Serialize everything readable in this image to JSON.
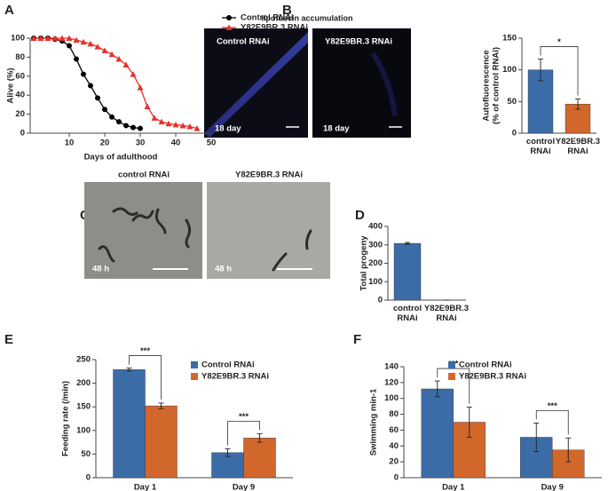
{
  "panels": [
    "A",
    "B",
    "C",
    "D",
    "E",
    "F"
  ],
  "images": {
    "title": "lipofuscin accumulation",
    "b": [
      {
        "label": "Control RNAi",
        "time": "18 day"
      },
      {
        "label": "Y82E9BR.3 RNAi",
        "time": "18 day"
      }
    ],
    "c": [
      {
        "label": "control RNAi",
        "time": "48 h"
      },
      {
        "label": "Y82E9BR.3 RNAi",
        "time": "48 h"
      }
    ]
  },
  "chart_data": [
    {
      "type": "line",
      "ylabel": "Alive (%)",
      "xlabel": "Days of adulthood",
      "xlim": [
        0,
        50
      ],
      "xticks": [
        10,
        20,
        30,
        40,
        50
      ],
      "ylim": [
        0,
        100
      ],
      "yticks": [
        0,
        20,
        40,
        60,
        80,
        100
      ],
      "legend": "upper right",
      "series": [
        {
          "name": "Control RNAi",
          "color": "#000000",
          "marker": "circle",
          "x": [
            0,
            2,
            4,
            6,
            8,
            10,
            12,
            14,
            16,
            18,
            20,
            22,
            24,
            26,
            28,
            30
          ],
          "values": [
            100,
            100,
            100,
            99,
            97,
            92,
            78,
            62,
            50,
            37,
            25,
            17,
            12,
            8,
            6,
            5
          ]
        },
        {
          "name": "Y82E9BR.3 RNAi",
          "color": "#e8302a",
          "marker": "triangle",
          "x": [
            0,
            2,
            4,
            6,
            8,
            10,
            12,
            14,
            16,
            18,
            20,
            22,
            24,
            26,
            28,
            30,
            32,
            34,
            36,
            38,
            40,
            42,
            44,
            46
          ],
          "values": [
            100,
            100,
            100,
            100,
            100,
            100,
            98,
            96,
            94,
            91,
            87,
            83,
            78,
            72,
            62,
            48,
            28,
            16,
            12,
            10,
            9,
            8,
            7,
            5
          ]
        }
      ]
    },
    {
      "type": "bar",
      "ylabel": [
        "Autofluorescence",
        "(% of control RNAi)"
      ],
      "categories": [
        "control RNAi",
        "Y82E9BR.3 RNAi"
      ],
      "values": [
        100,
        46
      ],
      "errors": [
        17,
        8
      ],
      "colors": [
        "#3c6ca8",
        "#d2672c"
      ],
      "ylim": [
        0,
        150
      ],
      "yticks": [
        0,
        50,
        100,
        150
      ],
      "annotations": [
        "*"
      ]
    },
    {
      "type": "bar",
      "ylabel": [
        "Total progeny"
      ],
      "categories": [
        "control RNAi",
        "Y82E9BR.3 RNAi"
      ],
      "values": [
        308,
        0
      ],
      "errors": [
        5,
        0
      ],
      "colors": [
        "#3c6ca8",
        "#d2672c"
      ],
      "ylim": [
        0,
        400
      ],
      "yticks": [
        0,
        100,
        200,
        300,
        400
      ]
    },
    {
      "type": "bar",
      "ylabel": [
        "Feeding rate (/min)"
      ],
      "categories": [
        "Day 1",
        "Day 9"
      ],
      "series": [
        {
          "name": "Control RNAi",
          "color": "#3c6ca8",
          "values": [
            229,
            53
          ],
          "errors": [
            3,
            8
          ]
        },
        {
          "name": "Y82E9BR.3 RNAi",
          "color": "#d2672c",
          "values": [
            152,
            84
          ],
          "errors": [
            6,
            9
          ]
        }
      ],
      "ylim": [
        0,
        250
      ],
      "yticks": [
        0,
        50,
        100,
        150,
        200,
        250
      ],
      "annotations": [
        "***",
        "***"
      ],
      "legend": "upper right"
    },
    {
      "type": "bar",
      "ylabel": [
        "Swimming min-1"
      ],
      "categories": [
        "Day 1",
        "Day 9"
      ],
      "series": [
        {
          "name": "Control RNAi",
          "color": "#3c6ca8",
          "values": [
            112,
            51
          ],
          "errors": [
            10,
            18
          ]
        },
        {
          "name": "Y82E9BR.3 RNAi",
          "color": "#d2672c",
          "values": [
            70,
            35
          ],
          "errors": [
            19,
            15
          ]
        }
      ],
      "ylim": [
        0,
        140
      ],
      "yticks": [
        0,
        20,
        40,
        60,
        80,
        100,
        120,
        140
      ],
      "annotations": [
        "***",
        "***"
      ],
      "legend": "upper right"
    }
  ]
}
